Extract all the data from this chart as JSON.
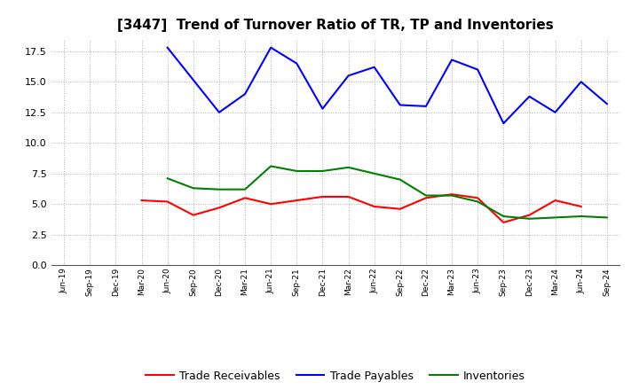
{
  "title": "[3447]  Trend of Turnover Ratio of TR, TP and Inventories",
  "x_labels": [
    "Jun-19",
    "Sep-19",
    "Dec-19",
    "Mar-20",
    "Jun-20",
    "Sep-20",
    "Dec-20",
    "Mar-21",
    "Jun-21",
    "Sep-21",
    "Dec-21",
    "Mar-22",
    "Jun-22",
    "Sep-22",
    "Dec-22",
    "Mar-23",
    "Jun-23",
    "Sep-23",
    "Dec-23",
    "Mar-24",
    "Jun-24",
    "Sep-24"
  ],
  "trade_receivables": [
    null,
    null,
    null,
    5.3,
    5.2,
    4.1,
    4.7,
    5.5,
    5.0,
    5.3,
    5.6,
    5.6,
    4.8,
    4.6,
    5.5,
    5.8,
    5.5,
    3.5,
    4.1,
    5.3,
    4.8,
    null
  ],
  "trade_payables": [
    null,
    null,
    null,
    null,
    17.8,
    null,
    12.5,
    14.0,
    17.8,
    16.5,
    12.8,
    15.5,
    16.2,
    13.1,
    13.0,
    16.8,
    16.0,
    11.6,
    13.8,
    12.5,
    15.0,
    13.2
  ],
  "inventories": [
    null,
    null,
    null,
    null,
    7.1,
    6.3,
    6.2,
    6.2,
    8.1,
    7.7,
    7.7,
    8.0,
    7.5,
    7.0,
    5.7,
    5.7,
    5.2,
    4.0,
    3.8,
    3.9,
    4.0,
    3.9
  ],
  "trade_receivables_color": "#ff0000",
  "trade_payables_color": "#0000ff",
  "inventories_color": "#008000",
  "ylim": [
    0,
    18.5
  ],
  "yticks": [
    0.0,
    2.5,
    5.0,
    7.5,
    10.0,
    12.5,
    15.0,
    17.5
  ],
  "legend_labels": [
    "Trade Receivables",
    "Trade Payables",
    "Inventories"
  ],
  "background_color": "#ffffff",
  "grid_color": "#999999"
}
